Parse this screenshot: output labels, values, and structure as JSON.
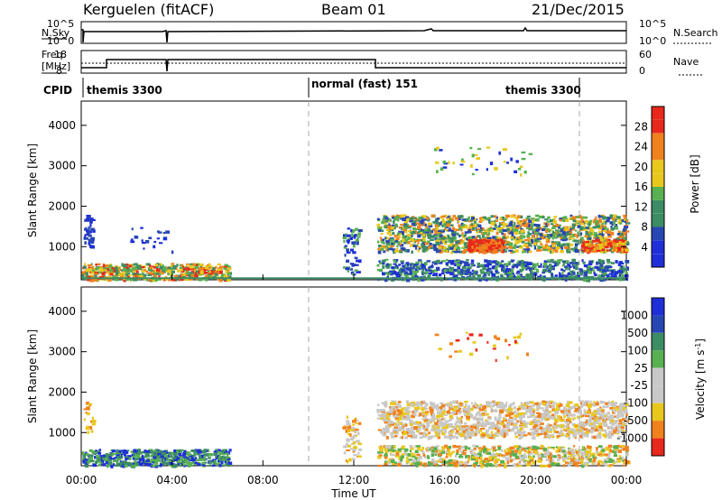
{
  "header": {
    "station": "Kerguelen (fitACF)",
    "beam": "Beam 01",
    "date": "21/Dec/2015"
  },
  "top_panels": {
    "nsky_label": "N.Sky",
    "nsky_ticks": [
      "10^5",
      "10^0"
    ],
    "nsearch_label": "N.Search",
    "freq_label_1": "Freq.",
    "freq_label_2": "[MHz]",
    "freq_ticks": [
      "18",
      "8"
    ],
    "nave_label": "Nave",
    "nave_ticks": [
      "60",
      "0"
    ],
    "cpid_label": "CPID",
    "cpid_segments": [
      "themis 3300",
      "normal (fast) 151",
      "themis 3300"
    ]
  },
  "x_axis": {
    "label": "Time UT",
    "ticks": [
      "00:00",
      "04:00",
      "08:00",
      "12:00",
      "16:00",
      "20:00",
      "00:00"
    ]
  },
  "colors": {
    "blue": "#1f2fd8",
    "darkblue": "#2846b4",
    "teal": "#3c8c64",
    "green": "#58b050",
    "yellow": "#e8c81c",
    "orange": "#f0821e",
    "red": "#e8281c",
    "grey": "#c8c8c8"
  },
  "chart_data": [
    {
      "type": "heatmap",
      "quantity": "Power",
      "xlabel": "Time UT",
      "ylabel": "Slant Range [km]",
      "xlim": [
        0,
        24
      ],
      "ylim": [
        180,
        4600
      ],
      "yticks": [
        "4000",
        "3000",
        "2000",
        "1000"
      ],
      "colorbar": {
        "label": "Power [dB]",
        "ticks": [
          "28",
          "24",
          "20",
          "16",
          "12",
          "8",
          "4"
        ]
      },
      "regions": [
        {
          "x": [
            0.0,
            6.5
          ],
          "y": [
            200,
            600
          ],
          "level": "orange/red"
        },
        {
          "x": [
            0.1,
            0.5
          ],
          "y": [
            1000,
            1800
          ],
          "level": "blue"
        },
        {
          "x": [
            11.5,
            12.2
          ],
          "y": [
            300,
            1500
          ],
          "level": "blue/green"
        },
        {
          "x": [
            13.0,
            24.0
          ],
          "y": [
            900,
            1800
          ],
          "level": "green/yellow"
        },
        {
          "x": [
            17.0,
            18.5
          ],
          "y": [
            900,
            1200
          ],
          "level": "red"
        },
        {
          "x": [
            22.0,
            24.0
          ],
          "y": [
            900,
            1200
          ],
          "level": "orange"
        },
        {
          "x": [
            13.0,
            24.0
          ],
          "y": [
            200,
            700
          ],
          "level": "blue/green"
        },
        {
          "x": [
            15.5,
            19.8
          ],
          "y": [
            2800,
            3500
          ],
          "level": "blue/yellow"
        }
      ]
    },
    {
      "type": "heatmap",
      "quantity": "Velocity",
      "xlabel": "Time UT",
      "ylabel": "Slant Range [km]",
      "xlim": [
        0,
        24
      ],
      "ylim": [
        180,
        4600
      ],
      "yticks": [
        "4000",
        "3000",
        "2000",
        "1000"
      ],
      "colorbar": {
        "label": "Velocity [m s-1]",
        "ticks": [
          "1000",
          "500",
          "100",
          "25",
          "-25",
          "-100",
          "-500",
          "-1000"
        ]
      },
      "regions": [
        {
          "x": [
            0.0,
            6.5
          ],
          "y": [
            200,
            600
          ],
          "level": "teal/green"
        },
        {
          "x": [
            11.5,
            12.2
          ],
          "y": [
            300,
            1500
          ],
          "level": "orange/grey"
        },
        {
          "x": [
            13.0,
            24.0
          ],
          "y": [
            900,
            1800
          ],
          "level": "grey"
        },
        {
          "x": [
            13.0,
            24.0
          ],
          "y": [
            200,
            700
          ],
          "level": "green/yellow"
        },
        {
          "x": [
            15.5,
            19.8
          ],
          "y": [
            2800,
            3500
          ],
          "level": "red/orange"
        }
      ]
    }
  ]
}
